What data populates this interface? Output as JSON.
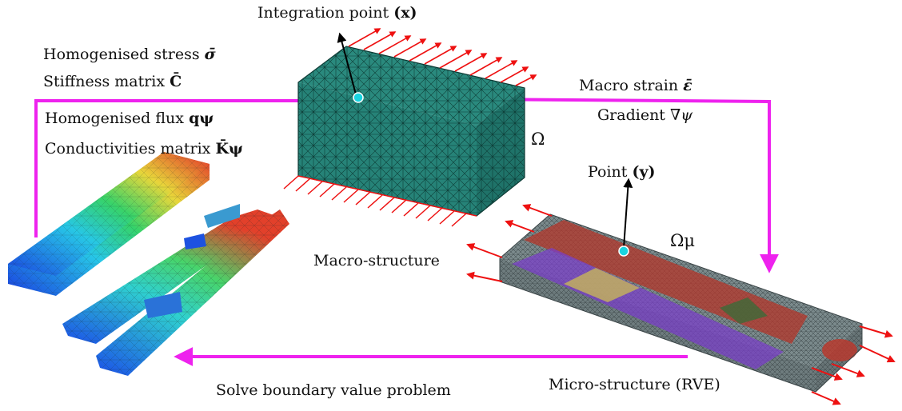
{
  "labels": {
    "integration_point": "Integration point",
    "integration_point_sym": "(x)",
    "homog_stress": "Homogenised stress",
    "homog_stress_sym": "σ̄",
    "stiffness": "Stiffness matrix",
    "stiffness_sym": "C̄",
    "homog_flux": "Homogenised flux",
    "homog_flux_sym": "qψ",
    "conductivities": "Conductivities matrix",
    "conductivities_sym": "K̄ψ",
    "macro_strain": "Macro strain",
    "macro_strain_sym": "ε̄",
    "gradient": "Gradient",
    "gradient_sym": "∇ψ",
    "omega": "Ω",
    "point": "Point",
    "point_sym": "(y)",
    "omega_mu": "Ωμ",
    "macro_structure": "Macro-structure",
    "micro_structure": "Micro-structure (RVE)",
    "solve_bvp": "Solve boundary value problem"
  },
  "colors": {
    "loop_arrow": "#ee22ee",
    "load_arrow": "#ee1111",
    "macro_block": "#2a8a7e",
    "point_marker": "#19d3e0",
    "rve_grid": "#7b8a8c"
  }
}
